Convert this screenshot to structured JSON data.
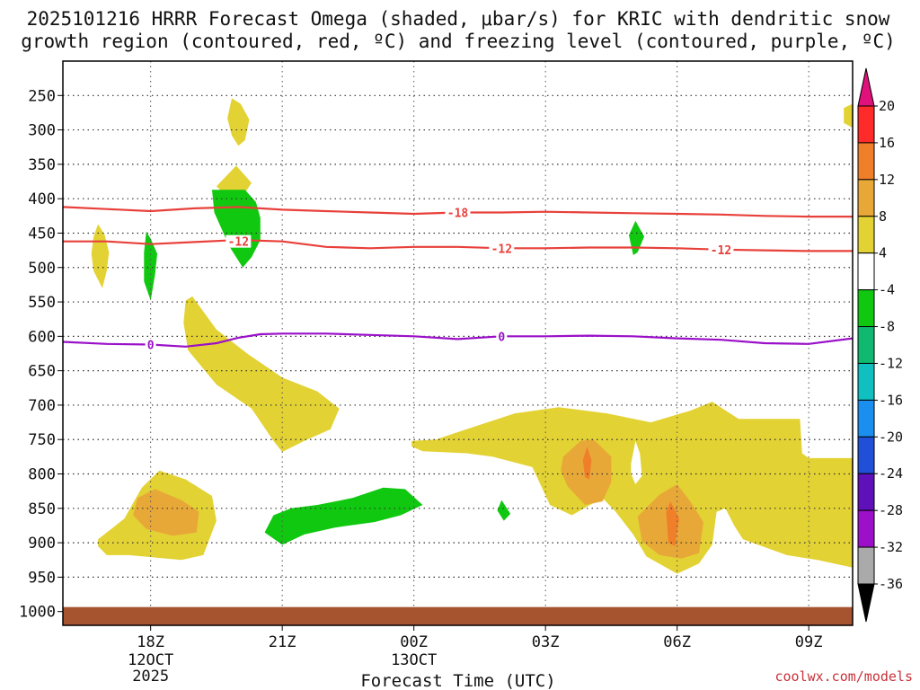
{
  "chart_data": {
    "type": "heatmap",
    "title_line1": "2025101216 HRRR Forecast Omega (shaded, μbar/s) for KRIC with dendritic snow",
    "title_line2": "growth region (contoured, red, ºC) and freezing level (contoured, purple, ºC)",
    "xlabel": "Forecast Time (UTC)",
    "ylabel": "",
    "x_range_hours": [
      -2,
      16
    ],
    "x_ticks": [
      {
        "hour": 0,
        "label": "18Z",
        "sub1": "12OCT",
        "sub2": "2025"
      },
      {
        "hour": 3,
        "label": "21Z",
        "sub1": "",
        "sub2": ""
      },
      {
        "hour": 6,
        "label": "00Z",
        "sub1": "13OCT",
        "sub2": ""
      },
      {
        "hour": 9,
        "label": "03Z",
        "sub1": "",
        "sub2": ""
      },
      {
        "hour": 12,
        "label": "06Z",
        "sub1": "",
        "sub2": ""
      },
      {
        "hour": 15,
        "label": "09Z",
        "sub1": "",
        "sub2": ""
      }
    ],
    "y_range_hpa": [
      200,
      1020
    ],
    "y_ticks": [
      250,
      300,
      350,
      400,
      450,
      500,
      550,
      600,
      650,
      700,
      750,
      800,
      850,
      900,
      950,
      1000
    ],
    "surface_hpa": 1000,
    "colorbar": {
      "ticks": [
        "20",
        "16",
        "12",
        "8",
        "4",
        "-4",
        "-8",
        "-12",
        "-16",
        "-20",
        "-24",
        "-28",
        "-32",
        "-36"
      ],
      "colors": [
        "#ff2a2a",
        "#f07f2a",
        "#e8a838",
        "#e3d233",
        "#ffffff",
        "#10c810",
        "#10b870",
        "#10c0c0",
        "#1b8ff0",
        "#2050d8",
        "#6010b8",
        "#9b10c8",
        "#aaaaaa",
        "#000000"
      ],
      "top_color": "#e0117a",
      "bottom_color": "#000000"
    },
    "omega_regions": [
      {
        "name": "yellow-upper-right-edge",
        "color": "#e3d233",
        "points": [
          [
            15.8,
            268
          ],
          [
            16,
            262
          ],
          [
            16,
            297
          ],
          [
            15.8,
            290
          ]
        ]
      },
      {
        "name": "yellow-upper-spike",
        "color": "#e3d233",
        "points": [
          [
            1.85,
            254
          ],
          [
            2.05,
            262
          ],
          [
            2.25,
            285
          ],
          [
            2.15,
            315
          ],
          [
            2.0,
            323
          ],
          [
            1.85,
            308
          ],
          [
            1.75,
            283
          ]
        ]
      },
      {
        "name": "yellow-blob-370",
        "color": "#e3d233",
        "points": [
          [
            1.5,
            382
          ],
          [
            1.95,
            352
          ],
          [
            2.3,
            377
          ],
          [
            2.1,
            396
          ],
          [
            1.8,
            400
          ]
        ]
      },
      {
        "name": "yellow-left-460",
        "color": "#e3d233",
        "points": [
          [
            -1.2,
            437
          ],
          [
            -1.05,
            452
          ],
          [
            -0.95,
            478
          ],
          [
            -1.0,
            505
          ],
          [
            -1.1,
            530
          ],
          [
            -1.3,
            505
          ],
          [
            -1.35,
            480
          ],
          [
            -1.3,
            455
          ]
        ]
      },
      {
        "name": "yellow-diagonal-620",
        "color": "#e3d233",
        "points": [
          [
            0.8,
            548
          ],
          [
            0.95,
            542
          ],
          [
            1.5,
            590
          ],
          [
            2.2,
            625
          ],
          [
            3.0,
            660
          ],
          [
            3.8,
            680
          ],
          [
            4.3,
            705
          ],
          [
            4.1,
            735
          ],
          [
            3.5,
            752
          ],
          [
            3.0,
            768
          ],
          [
            2.8,
            752
          ],
          [
            2.3,
            705
          ],
          [
            1.5,
            670
          ],
          [
            0.85,
            620
          ],
          [
            0.75,
            580
          ]
        ]
      },
      {
        "name": "yellow-lower-left",
        "color": "#e3d233",
        "points": [
          [
            -1.2,
            895
          ],
          [
            -0.6,
            865
          ],
          [
            -0.2,
            820
          ],
          [
            0.2,
            795
          ],
          [
            0.8,
            808
          ],
          [
            1.4,
            832
          ],
          [
            1.5,
            868
          ],
          [
            1.2,
            918
          ],
          [
            0.7,
            925
          ],
          [
            -0.5,
            918
          ],
          [
            -1.0,
            918
          ],
          [
            -1.2,
            905
          ]
        ]
      },
      {
        "name": "yellow-lower-right-large",
        "color": "#e3d233",
        "points": [
          [
            5.95,
            752
          ],
          [
            6.5,
            750
          ],
          [
            7.2,
            735
          ],
          [
            8.3,
            712
          ],
          [
            9.3,
            703
          ],
          [
            10.4,
            712
          ],
          [
            11.4,
            725
          ],
          [
            12.3,
            708
          ],
          [
            12.8,
            695
          ],
          [
            13.4,
            720
          ],
          [
            14.8,
            720
          ],
          [
            14.85,
            770
          ],
          [
            15.0,
            777
          ],
          [
            16.0,
            777
          ],
          [
            16.0,
            936
          ],
          [
            15.2,
            925
          ],
          [
            14.5,
            918
          ],
          [
            13.5,
            895
          ],
          [
            13.3,
            875
          ],
          [
            13.1,
            850
          ],
          [
            12.9,
            855
          ],
          [
            12.8,
            903
          ],
          [
            12.5,
            930
          ],
          [
            12.0,
            945
          ],
          [
            11.3,
            920
          ],
          [
            11.0,
            888
          ],
          [
            10.6,
            855
          ],
          [
            10.3,
            835
          ],
          [
            9.6,
            860
          ],
          [
            9.1,
            845
          ],
          [
            8.7,
            790
          ],
          [
            7.8,
            775
          ],
          [
            7.2,
            770
          ],
          [
            6.2,
            767
          ],
          [
            5.95,
            760
          ]
        ]
      },
      {
        "name": "white-hole",
        "color": "#ffffff",
        "points": [
          [
            10.95,
            785
          ],
          [
            11.05,
            752
          ],
          [
            11.15,
            770
          ],
          [
            11.2,
            803
          ],
          [
            11.05,
            815
          ],
          [
            10.95,
            800
          ]
        ]
      },
      {
        "name": "orange-left",
        "color": "#e8a838",
        "points": [
          [
            -0.3,
            835
          ],
          [
            0.1,
            822
          ],
          [
            0.7,
            838
          ],
          [
            1.1,
            855
          ],
          [
            1.05,
            885
          ],
          [
            0.5,
            890
          ],
          [
            -0.1,
            880
          ],
          [
            -0.4,
            860
          ]
        ]
      },
      {
        "name": "orange-right-1",
        "color": "#e8a838",
        "points": [
          [
            9.4,
            775
          ],
          [
            9.8,
            752
          ],
          [
            10.1,
            750
          ],
          [
            10.5,
            775
          ],
          [
            10.5,
            812
          ],
          [
            10.3,
            840
          ],
          [
            9.9,
            845
          ],
          [
            9.5,
            818
          ],
          [
            9.35,
            795
          ]
        ]
      },
      {
        "name": "orange-right-2",
        "color": "#e8a838",
        "points": [
          [
            11.1,
            862
          ],
          [
            11.6,
            830
          ],
          [
            12.0,
            815
          ],
          [
            12.3,
            840
          ],
          [
            12.6,
            870
          ],
          [
            12.5,
            915
          ],
          [
            12.1,
            923
          ],
          [
            11.6,
            918
          ],
          [
            11.2,
            898
          ]
        ]
      },
      {
        "name": "dark-orange-1",
        "color": "#f07f2a",
        "points": [
          [
            9.85,
            780
          ],
          [
            9.95,
            760
          ],
          [
            10.05,
            780
          ],
          [
            10.0,
            808
          ],
          [
            9.9,
            805
          ]
        ]
      },
      {
        "name": "dark-orange-2",
        "color": "#f07f2a",
        "points": [
          [
            11.75,
            855
          ],
          [
            11.85,
            840
          ],
          [
            12.05,
            865
          ],
          [
            11.95,
            905
          ],
          [
            11.8,
            900
          ]
        ]
      },
      {
        "name": "green-upper",
        "color": "#10c810",
        "points": [
          [
            1.4,
            387
          ],
          [
            2.15,
            387
          ],
          [
            2.4,
            405
          ],
          [
            2.5,
            428
          ],
          [
            2.5,
            460
          ],
          [
            2.3,
            485
          ],
          [
            2.1,
            500
          ],
          [
            1.8,
            470
          ],
          [
            1.45,
            420
          ]
        ]
      },
      {
        "name": "green-left-475",
        "color": "#10c810",
        "points": [
          [
            -0.1,
            448
          ],
          [
            0.0,
            458
          ],
          [
            0.15,
            480
          ],
          [
            0.1,
            510
          ],
          [
            0.0,
            548
          ],
          [
            -0.15,
            520
          ],
          [
            -0.15,
            478
          ]
        ]
      },
      {
        "name": "green-lower",
        "color": "#10c810",
        "points": [
          [
            2.8,
            860
          ],
          [
            3.2,
            850
          ],
          [
            3.8,
            845
          ],
          [
            4.6,
            835
          ],
          [
            5.3,
            820
          ],
          [
            5.8,
            822
          ],
          [
            6.2,
            845
          ],
          [
            5.7,
            860
          ],
          [
            5.1,
            870
          ],
          [
            4.2,
            878
          ],
          [
            3.5,
            888
          ],
          [
            3.0,
            903
          ],
          [
            2.6,
            885
          ]
        ]
      },
      {
        "name": "green-tiny-845",
        "color": "#10c810",
        "points": [
          [
            7.9,
            853
          ],
          [
            8.0,
            838
          ],
          [
            8.2,
            858
          ],
          [
            8.05,
            868
          ]
        ]
      },
      {
        "name": "green-small-455",
        "color": "#10c810",
        "points": [
          [
            10.9,
            453
          ],
          [
            11.05,
            432
          ],
          [
            11.25,
            455
          ],
          [
            11.1,
            478
          ],
          [
            11.0,
            482
          ]
        ]
      }
    ],
    "contours": [
      {
        "name": "-18 contour",
        "color": "#e8403a",
        "label": "-18",
        "label_at": [
          7.0,
          420
        ],
        "points": [
          [
            -2,
            412
          ],
          [
            -1,
            415
          ],
          [
            0,
            418
          ],
          [
            1,
            414
          ],
          [
            2,
            412
          ],
          [
            3,
            416
          ],
          [
            4,
            418
          ],
          [
            5,
            420
          ],
          [
            6,
            422
          ],
          [
            7,
            420
          ],
          [
            8,
            420
          ],
          [
            9,
            419
          ],
          [
            10,
            420
          ],
          [
            11,
            421
          ],
          [
            12,
            422
          ],
          [
            13,
            423
          ],
          [
            14,
            425
          ],
          [
            15,
            426
          ],
          [
            16,
            426
          ]
        ]
      },
      {
        "name": "-12 contour",
        "color": "#e8403a",
        "label": "-12",
        "label_at": [
          8.0,
          472
        ],
        "label2": "-12",
        "label2_at": [
          13.0,
          474
        ],
        "label3": "-12",
        "label3_at": [
          2.0,
          462
        ],
        "points": [
          [
            -2,
            462
          ],
          [
            -1,
            462
          ],
          [
            0,
            466
          ],
          [
            1,
            463
          ],
          [
            2,
            460
          ],
          [
            3,
            462
          ],
          [
            4,
            470
          ],
          [
            5,
            472
          ],
          [
            6,
            470
          ],
          [
            7,
            470
          ],
          [
            8,
            472
          ],
          [
            9,
            472
          ],
          [
            10,
            471
          ],
          [
            11,
            471
          ],
          [
            12,
            472
          ],
          [
            13,
            474
          ],
          [
            14,
            475
          ],
          [
            15,
            476
          ],
          [
            16,
            476
          ]
        ]
      },
      {
        "name": "0 contour",
        "color": "#9a10c8",
        "label": "0",
        "label2": "0",
        "label_at": [
          0.0,
          612
        ],
        "label2_at": [
          8.0,
          600
        ],
        "points": [
          [
            -2,
            608
          ],
          [
            -1,
            611
          ],
          [
            0,
            612
          ],
          [
            0.8,
            615
          ],
          [
            1.5,
            610
          ],
          [
            2.0,
            602
          ],
          [
            2.5,
            597
          ],
          [
            3,
            596
          ],
          [
            4,
            596
          ],
          [
            5,
            598
          ],
          [
            6,
            600
          ],
          [
            7,
            604
          ],
          [
            8,
            600
          ],
          [
            9,
            600
          ],
          [
            10,
            599
          ],
          [
            11,
            600
          ],
          [
            12,
            603
          ],
          [
            13,
            605
          ],
          [
            14,
            610
          ],
          [
            15,
            611
          ],
          [
            16,
            603
          ]
        ]
      }
    ],
    "credit": "coolwx.com/models"
  }
}
